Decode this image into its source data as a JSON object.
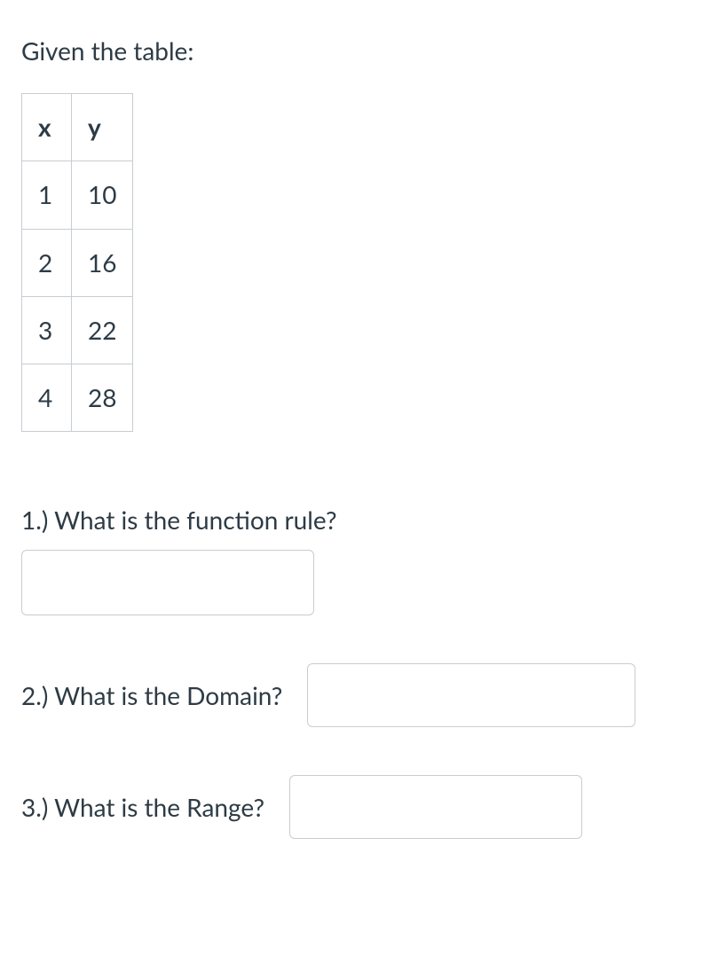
{
  "intro_text": "Given the table:",
  "data_table": {
    "type": "table",
    "columns": [
      "x",
      "y"
    ],
    "rows": [
      [
        "1",
        "10"
      ],
      [
        "2",
        "16"
      ],
      [
        "3",
        "22"
      ],
      [
        "4",
        "28"
      ]
    ],
    "border_color": "#c7cdd1",
    "text_color": "#2d3b45",
    "header_fontweight": 700,
    "cell_fontsize": 28
  },
  "questions": {
    "q1": {
      "label": "1.) What is the function rule?",
      "value": ""
    },
    "q2": {
      "label": "2.) What is the Domain?",
      "value": ""
    },
    "q3": {
      "label": "3.) What is the Range?",
      "value": ""
    }
  },
  "colors": {
    "text": "#2d3b45",
    "border": "#c7cdd1",
    "background": "#ffffff",
    "focus": "#0374b5"
  }
}
